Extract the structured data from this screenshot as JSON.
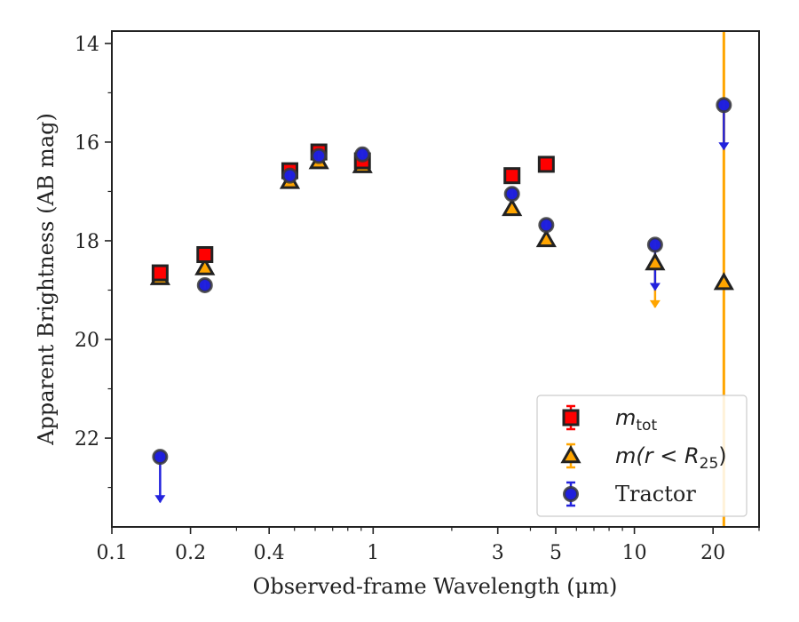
{
  "chart_data": {
    "type": "scatter",
    "xlabel": "Observed-frame Wavelength (μm)",
    "ylabel": "Apparent Brightness (AB mag)",
    "xscale": "log",
    "xlim": [
      0.1,
      30
    ],
    "ylim": [
      23.8,
      13.75
    ],
    "y_inverted": true,
    "grid": false,
    "legend_position": "lower-right",
    "x_ticks": [
      {
        "value": 0.1,
        "label": "0.1"
      },
      {
        "value": 0.2,
        "label": "0.2"
      },
      {
        "value": 0.4,
        "label": "0.4"
      },
      {
        "value": 1,
        "label": "1"
      },
      {
        "value": 3,
        "label": "3"
      },
      {
        "value": 5,
        "label": "5"
      },
      {
        "value": 10,
        "label": "10"
      },
      {
        "value": 20,
        "label": "20"
      }
    ],
    "y_ticks": [
      {
        "value": 14,
        "label": "14"
      },
      {
        "value": 16,
        "label": "16"
      },
      {
        "value": 18,
        "label": "18"
      },
      {
        "value": 20,
        "label": "20"
      },
      {
        "value": 22,
        "label": "22"
      }
    ],
    "vertical_line": {
      "x": 22.0,
      "color": "#ffa500"
    },
    "series": [
      {
        "name_base": "m",
        "name_sub": "tot",
        "marker": "square",
        "fill": "#ff0000",
        "edge": "#222222",
        "errcolor": "#ff0000",
        "points": [
          {
            "x": 0.153,
            "y": 18.65
          },
          {
            "x": 0.227,
            "y": 18.28
          },
          {
            "x": 0.48,
            "y": 16.58
          },
          {
            "x": 0.62,
            "y": 16.2
          },
          {
            "x": 0.91,
            "y": 16.38
          },
          {
            "x": 3.4,
            "y": 16.68
          },
          {
            "x": 4.6,
            "y": 16.45
          }
        ]
      },
      {
        "name_base": "m(r < R",
        "name_sub": "25",
        "name_end": ")",
        "marker": "triangle",
        "fill": "#ffa500",
        "edge": "#222222",
        "errcolor": "#ffa500",
        "points": [
          {
            "x": 0.153,
            "y": 18.75
          },
          {
            "x": 0.227,
            "y": 18.55
          },
          {
            "x": 0.48,
            "y": 16.8
          },
          {
            "x": 0.62,
            "y": 16.4
          },
          {
            "x": 0.91,
            "y": 16.48
          },
          {
            "x": 3.4,
            "y": 17.35
          },
          {
            "x": 4.6,
            "y": 17.98
          },
          {
            "x": 12.0,
            "y": 18.45,
            "upper_limit_to": 19.35
          },
          {
            "x": 22.0,
            "y": 18.85
          }
        ]
      },
      {
        "name": "Tractor",
        "marker": "circle",
        "fill": "#1f1fdd",
        "edge": "#3a3a3a",
        "errcolor": "#2222dd",
        "points": [
          {
            "x": 0.153,
            "y": 22.38,
            "upper_limit_to": 23.3
          },
          {
            "x": 0.227,
            "y": 18.9
          },
          {
            "x": 0.48,
            "y": 16.68
          },
          {
            "x": 0.62,
            "y": 16.28
          },
          {
            "x": 0.91,
            "y": 16.25
          },
          {
            "x": 3.4,
            "y": 17.05
          },
          {
            "x": 4.6,
            "y": 17.68
          },
          {
            "x": 12.0,
            "y": 18.08,
            "upper_limit_to": 19.0
          },
          {
            "x": 22.0,
            "y": 15.25,
            "upper_limit_to": 16.15
          }
        ]
      }
    ]
  }
}
